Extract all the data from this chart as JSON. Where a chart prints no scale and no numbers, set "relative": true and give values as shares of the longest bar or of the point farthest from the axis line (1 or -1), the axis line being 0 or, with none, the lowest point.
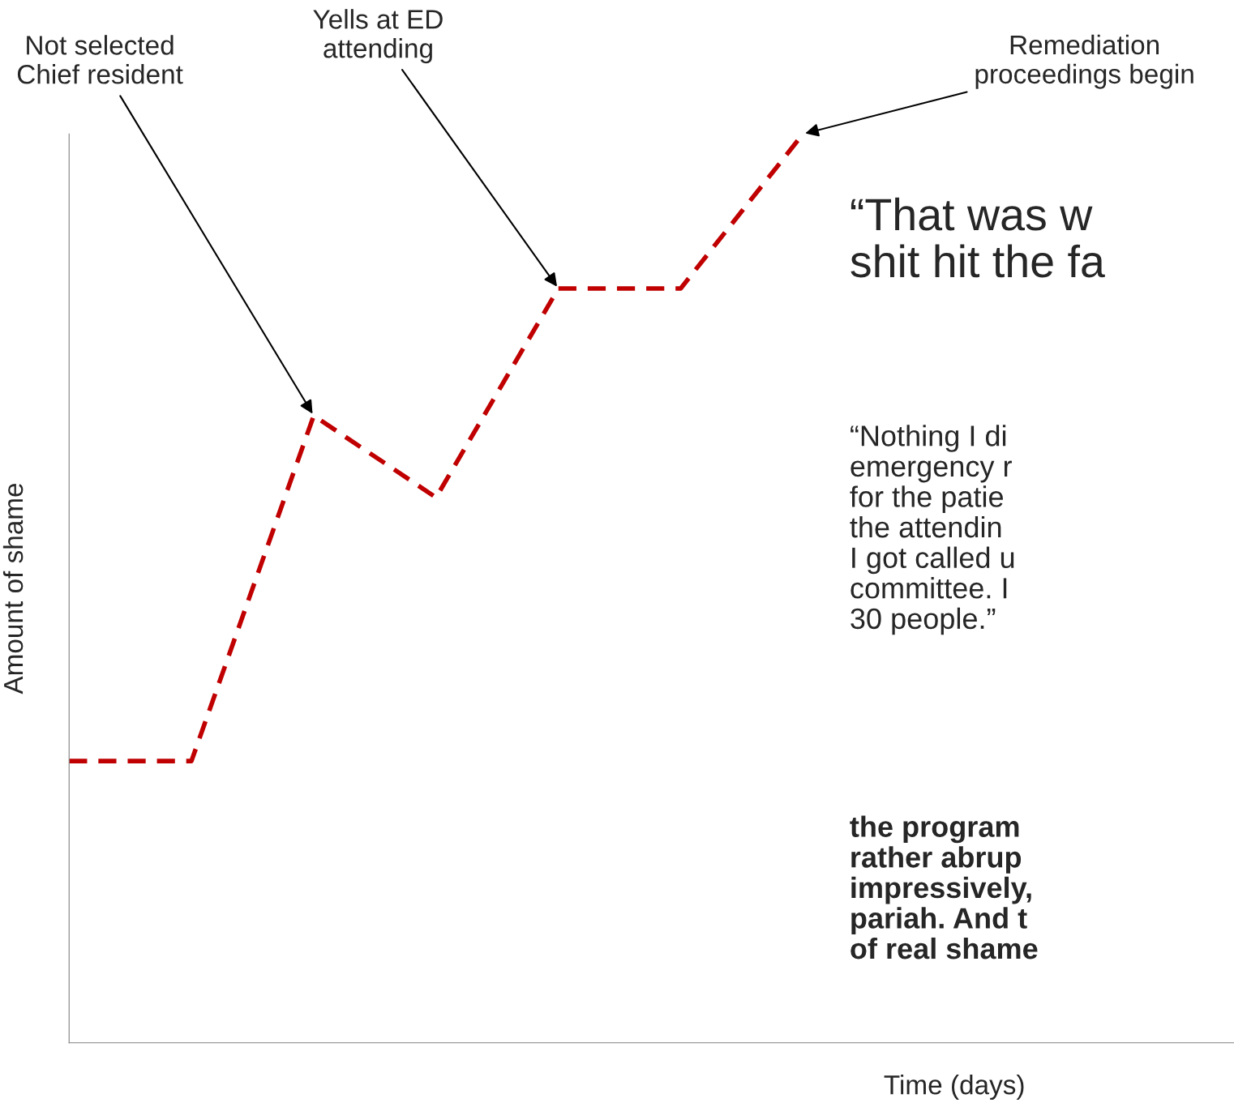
{
  "chart_data": {
    "type": "line",
    "relative": true,
    "xlabel": "Time (days)",
    "ylabel": "Amount of shame",
    "categories": [
      null,
      null,
      null,
      null,
      null,
      null,
      null
    ],
    "series": [
      {
        "color": "#c00000",
        "values": [
          0.31,
          0.31,
          0.69,
          0.6,
          0.83,
          0.83,
          1.0
        ]
      }
    ],
    "line_style": "dashed",
    "annotations": [
      "Not selected\nChief resident",
      "Yells at ED\nattending",
      "Remediation\nproceedings begin",
      "“That was w\nshit hit the fa",
      "“Nothing I di\nemergency r\nfor the patie\nthe attendin\nI got called u\ncommittee. I\n30 people.”",
      "the program\nrather abrup\nimpressively,\npariah. And t\nof real shame"
    ]
  }
}
